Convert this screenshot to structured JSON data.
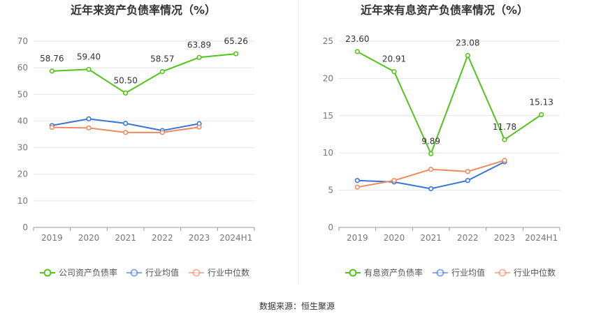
{
  "source_label": "数据来源：恒生聚源",
  "chart_data": [
    {
      "type": "line",
      "title": "近年来资产负债率情况（%）",
      "categories": [
        "2019",
        "2020",
        "2021",
        "2022",
        "2023",
        "2024H1"
      ],
      "ylim": [
        0,
        70
      ],
      "yticks": [
        0,
        10,
        20,
        30,
        40,
        50,
        60,
        70
      ],
      "grid": true,
      "legend_position": "bottom",
      "series": [
        {
          "name": "公司资产负债率",
          "color": "#52c41a",
          "values": [
            58.76,
            59.4,
            50.5,
            58.57,
            63.89,
            65.26
          ],
          "labels": [
            "58.76",
            "59.40",
            "50.50",
            "58.57",
            "63.89",
            "65.26"
          ]
        },
        {
          "name": "行业均值",
          "color": "#3a75dc",
          "values": [
            38.3,
            40.8,
            39.1,
            36.4,
            39.0,
            null
          ]
        },
        {
          "name": "行业中位数",
          "color": "#ee8a5e",
          "values": [
            37.6,
            37.4,
            35.7,
            35.7,
            37.7,
            null
          ]
        }
      ]
    },
    {
      "type": "line",
      "title": "近年来有息资产负债率情况（%）",
      "categories": [
        "2019",
        "2020",
        "2021",
        "2022",
        "2023",
        "2024H1"
      ],
      "ylim": [
        0,
        25
      ],
      "yticks": [
        0,
        5,
        10,
        15,
        20,
        25
      ],
      "grid": true,
      "legend_position": "bottom",
      "series": [
        {
          "name": "有息资产负债率",
          "color": "#52c41a",
          "values": [
            23.6,
            20.91,
            9.89,
            23.08,
            11.78,
            15.13
          ],
          "labels": [
            "23.60",
            "20.91",
            "9.89",
            "23.08",
            "11.78",
            "15.13"
          ]
        },
        {
          "name": "行业均值",
          "color": "#3a75dc",
          "values": [
            6.3,
            6.1,
            5.2,
            6.3,
            8.8,
            null
          ]
        },
        {
          "name": "行业中位数",
          "color": "#ee8a5e",
          "values": [
            5.4,
            6.3,
            7.8,
            7.5,
            9.0,
            null
          ]
        }
      ]
    }
  ]
}
